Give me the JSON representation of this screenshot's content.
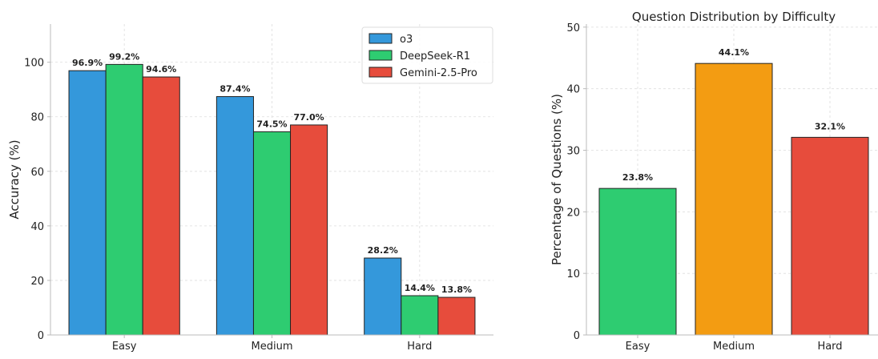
{
  "chart_data": [
    {
      "type": "bar",
      "title": "",
      "xlabel": "",
      "ylabel": "Accuracy (%)",
      "categories": [
        "Easy",
        "Medium",
        "Hard"
      ],
      "series": [
        {
          "name": "o3",
          "color": "#3498db",
          "values": [
            96.9,
            87.4,
            28.2
          ],
          "labels": [
            "96.9%",
            "87.4%",
            "28.2%"
          ]
        },
        {
          "name": "DeepSeek-R1",
          "color": "#2ecc71",
          "values": [
            99.2,
            74.5,
            14.4
          ],
          "labels": [
            "99.2%",
            "74.5%",
            "14.4%"
          ]
        },
        {
          "name": "Gemini-2.5-Pro",
          "color": "#e74c3c",
          "values": [
            94.6,
            77.0,
            13.8
          ],
          "labels": [
            "94.6%",
            "77.0%",
            "13.8%"
          ]
        }
      ],
      "yticks": [
        0,
        20,
        40,
        60,
        80,
        100
      ],
      "ylim": [
        0,
        114
      ],
      "grid": true,
      "legend": "top-right"
    },
    {
      "type": "bar",
      "title": "Question Distribution by Difficulty",
      "xlabel": "",
      "ylabel": "Percentage of Questions (%)",
      "categories": [
        "Easy",
        "Medium",
        "Hard"
      ],
      "values": [
        23.8,
        44.1,
        32.1
      ],
      "labels": [
        "23.8%",
        "44.1%",
        "32.1%"
      ],
      "colors": [
        "#2ecc71",
        "#f39c12",
        "#e74c3c"
      ],
      "yticks": [
        0,
        10,
        20,
        30,
        40,
        50
      ],
      "ylim": [
        0,
        50.5
      ],
      "grid": true
    }
  ]
}
